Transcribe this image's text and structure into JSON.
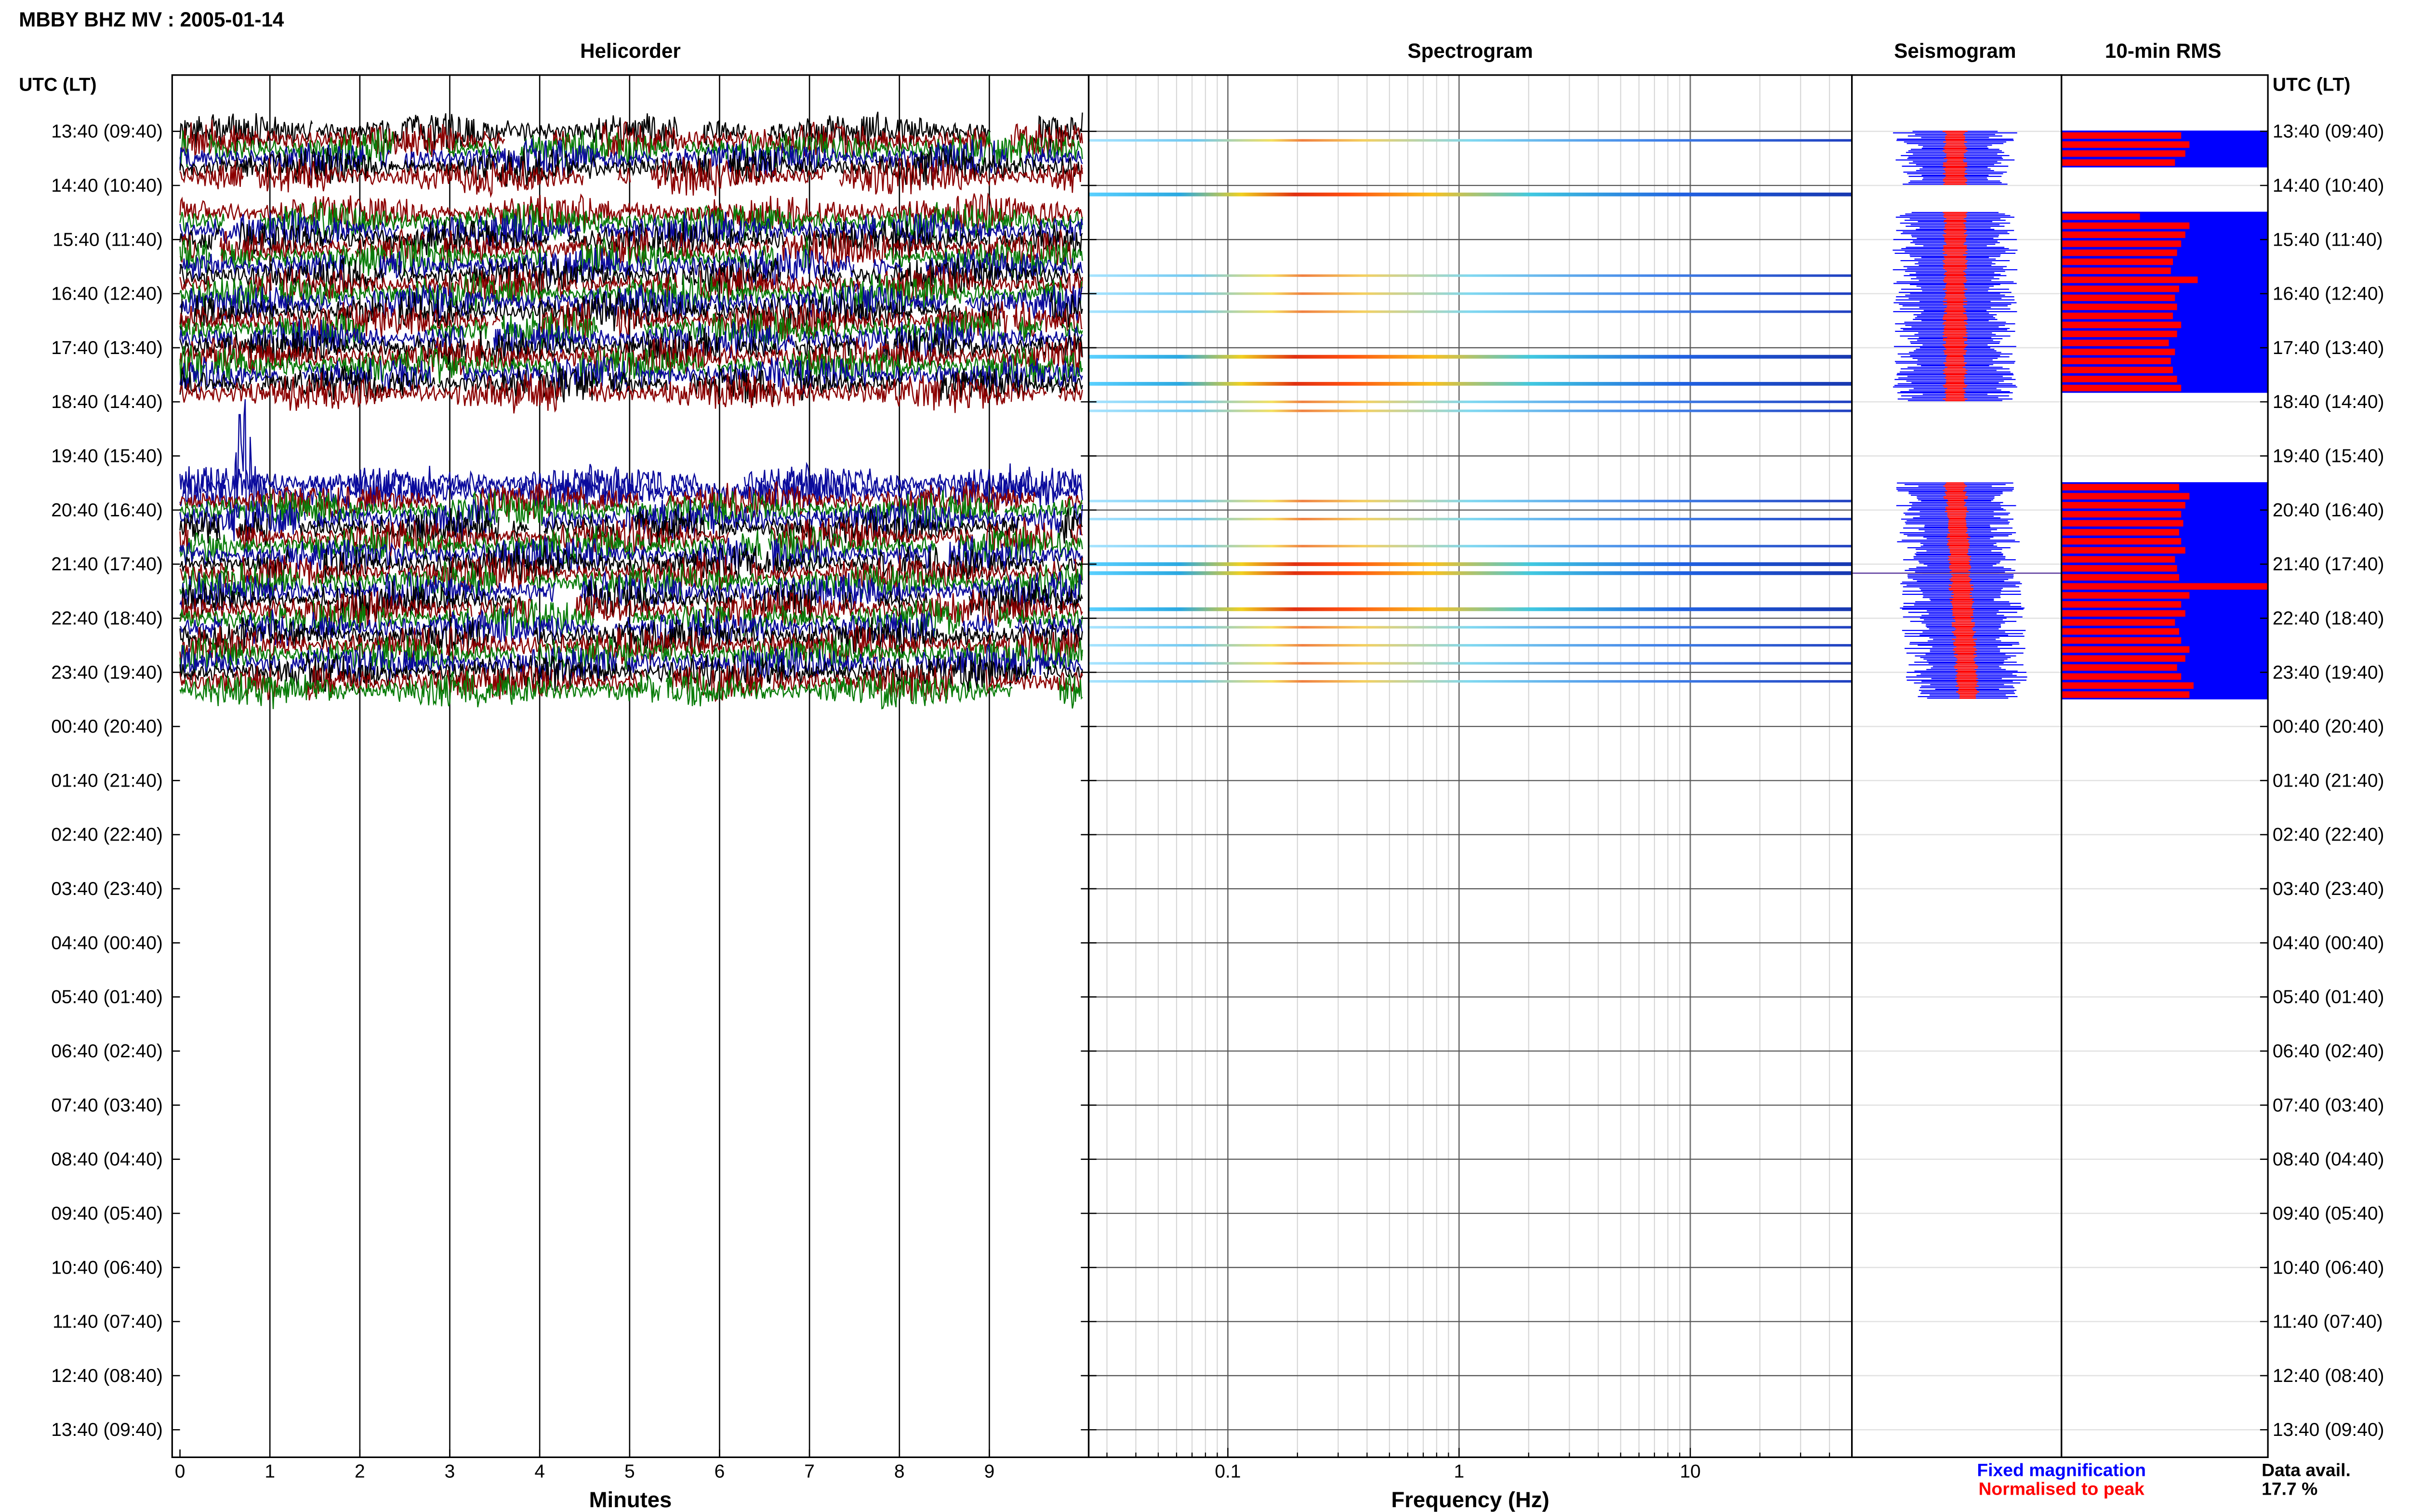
{
  "title": "MBBY BHZ MV : 2005-01-14",
  "time_axis_label": "UTC (LT)",
  "panels": {
    "helicorder": "Helicorder",
    "spectrogram": "Spectrogram",
    "seismogram": "Seismogram",
    "rms": "10-min RMS"
  },
  "legend": {
    "fixed_magnification": "Fixed magnification",
    "normalised_to_peak": "Normalised to peak",
    "fixed_color": "#0000ff",
    "normalised_color": "#ff0000"
  },
  "data_availability": {
    "label": "Data avail.",
    "value": "17.7 %"
  },
  "colors": {
    "trace_cycle": [
      "#000000",
      "#8b0000",
      "#0a7d0a",
      "#0a0a9c"
    ],
    "rms_fixed": "#0000ff",
    "rms_normalised": "#ff0000"
  },
  "chart_data": [
    {
      "type": "line",
      "title": "Helicorder",
      "xlabel": "Minutes",
      "x_ticks": [
        0,
        1,
        2,
        3,
        4,
        5,
        6,
        7,
        8,
        9
      ],
      "xlim": [
        0,
        10
      ],
      "grid": true,
      "rows_hourly_labels": [
        "13:40 (09:40)",
        "14:40 (10:40)",
        "15:40 (11:40)",
        "16:40 (12:40)",
        "17:40 (13:40)",
        "18:40 (14:40)",
        "19:40 (15:40)",
        "20:40 (16:40)",
        "21:40 (17:40)",
        "22:40 (18:40)",
        "23:40 (19:40)",
        "00:40 (20:40)",
        "01:40 (21:40)",
        "02:40 (22:40)",
        "03:40 (23:40)",
        "04:40 (00:40)",
        "05:40 (01:40)",
        "06:40 (02:40)",
        "07:40 (03:40)",
        "08:40 (04:40)",
        "09:40 (05:40)",
        "10:40 (06:40)",
        "11:40 (07:40)",
        "12:40 (08:40)",
        "13:40 (09:40)"
      ],
      "rows_per_hour": 6,
      "rows_with_data": 63,
      "gap_rows": [
        6,
        7,
        8,
        30,
        31,
        32,
        33,
        34,
        35,
        36,
        37,
        38
      ]
    },
    {
      "type": "heatmap",
      "title": "Spectrogram",
      "xlabel": "Frequency (Hz)",
      "x_scale": "log",
      "xlim": [
        0.025,
        50
      ],
      "x_tick_labels": [
        "0.1",
        "1",
        "10"
      ],
      "strong_rows": [
        7,
        25,
        28,
        48,
        49,
        53
      ],
      "shown_rows": [
        1,
        7,
        16,
        18,
        20,
        25,
        28,
        30,
        31,
        41,
        43,
        46,
        48,
        49,
        53,
        55,
        57,
        59,
        61
      ]
    },
    {
      "type": "line",
      "title": "Seismogram",
      "series": [
        {
          "name": "Fixed magnification",
          "color": "#0000ff",
          "segments": [
            [
              0,
              5
            ],
            [
              9,
              29
            ],
            [
              39,
              62
            ]
          ]
        },
        {
          "name": "Normalised to peak",
          "color": "#ff0000",
          "segments": [
            [
              0,
              5
            ],
            [
              9,
              29
            ],
            [
              39,
              62
            ]
          ]
        }
      ]
    },
    {
      "type": "bar",
      "title": "10-min RMS",
      "orientation": "horizontal",
      "rows": [
        0,
        1,
        2,
        3,
        9,
        10,
        11,
        12,
        13,
        14,
        15,
        16,
        17,
        18,
        19,
        20,
        21,
        22,
        23,
        24,
        25,
        26,
        27,
        28,
        39,
        40,
        41,
        42,
        43,
        44,
        45,
        46,
        47,
        48,
        49,
        50,
        51,
        52,
        53,
        54,
        55,
        56,
        57,
        58,
        59,
        60,
        61,
        62
      ],
      "series": [
        {
          "name": "Fixed magnification",
          "color": "#0000ff",
          "values": [
            1,
            1,
            1,
            1,
            1,
            1,
            1,
            1,
            1,
            1,
            1,
            1,
            1,
            1,
            1,
            1,
            1,
            1,
            1,
            1,
            1,
            1,
            1,
            1,
            1,
            1,
            1,
            1,
            1,
            1,
            1,
            1,
            1,
            1,
            1,
            1,
            1,
            1,
            1,
            1,
            1,
            1,
            1,
            1,
            1,
            1,
            1,
            1
          ]
        },
        {
          "name": "Normalised to peak",
          "color": "#ff0000",
          "values": [
            0.58,
            0.62,
            0.6,
            0.55,
            0.38,
            0.62,
            0.6,
            0.58,
            0.56,
            0.54,
            0.53,
            0.66,
            0.57,
            0.55,
            0.56,
            0.54,
            0.58,
            0.56,
            0.52,
            0.55,
            0.53,
            0.54,
            0.56,
            0.58,
            0.57,
            0.62,
            0.6,
            0.58,
            0.59,
            0.57,
            0.58,
            0.6,
            0.55,
            0.56,
            0.57,
            1.0,
            0.62,
            0.58,
            0.6,
            0.55,
            0.57,
            0.58,
            0.62,
            0.6,
            0.56,
            0.58,
            0.64,
            0.62
          ]
        }
      ]
    }
  ]
}
